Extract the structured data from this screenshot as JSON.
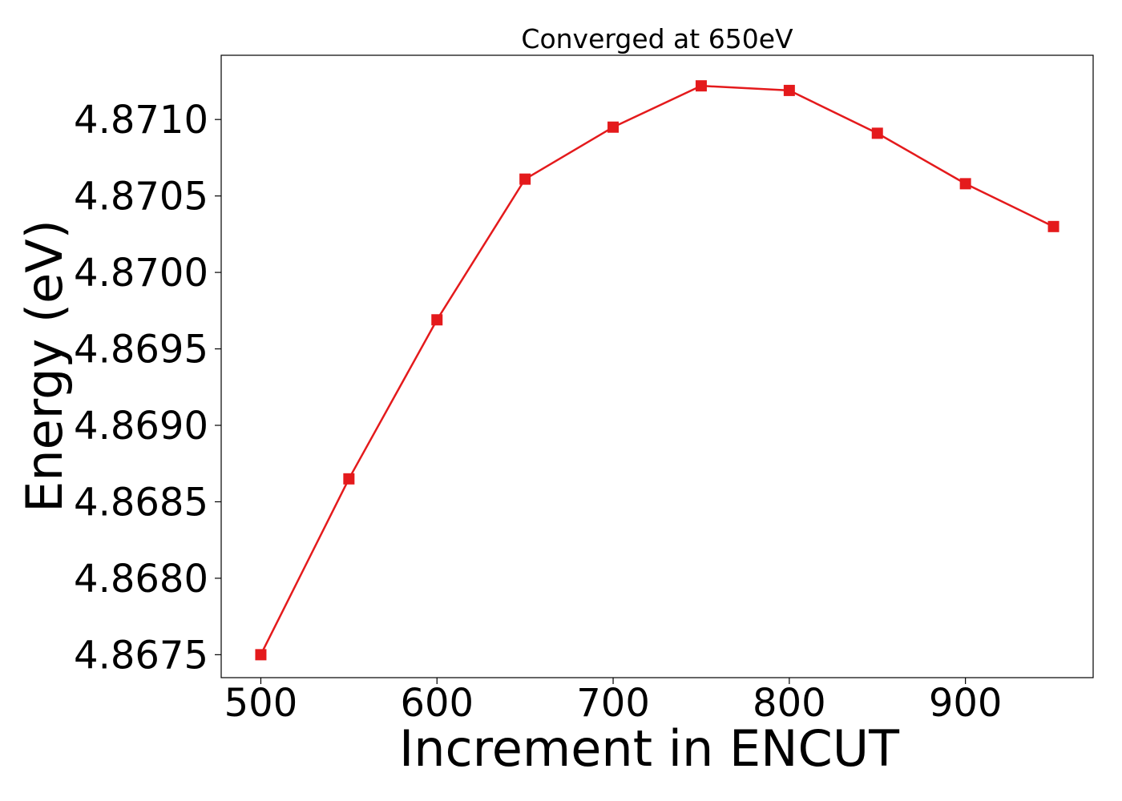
{
  "chart_data": {
    "type": "line",
    "title": "Converged at 650eV",
    "xlabel": "Increment in ENCUT",
    "ylabel": "Energy (eV)",
    "x": [
      500,
      550,
      600,
      650,
      700,
      750,
      800,
      850,
      900,
      950
    ],
    "series": [
      {
        "values": [
          4.8675,
          4.86865,
          4.86969,
          4.87061,
          4.87095,
          4.87122,
          4.87119,
          4.87091,
          4.87058,
          4.8703
        ],
        "color": "#e41a1c",
        "marker": "square"
      }
    ],
    "xlim": [
      477.5,
      972.5
    ],
    "ylim": [
      4.86735,
      4.87142
    ],
    "xticks": [
      500,
      600,
      700,
      800,
      900
    ],
    "yticks": [
      4.8675,
      4.868,
      4.8685,
      4.869,
      4.8695,
      4.87,
      4.8705,
      4.871
    ],
    "xtick_labels": [
      "500",
      "600",
      "700",
      "800",
      "900"
    ],
    "ytick_labels": [
      "4.8675",
      "4.8680",
      "4.8685",
      "4.8690",
      "4.8695",
      "4.8700",
      "4.8705",
      "4.8710"
    ],
    "grid": false,
    "legend": "none"
  }
}
